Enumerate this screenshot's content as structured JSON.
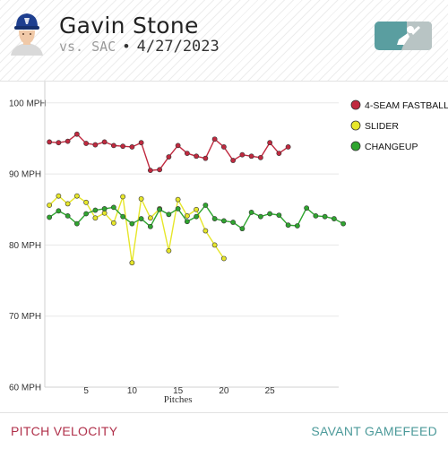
{
  "header": {
    "player_name": "Gavin Stone",
    "opponent": "vs. SAC",
    "separator": "•",
    "date": "4/27/2023",
    "avatar_icon": "player-headshot-icon",
    "logo_icon": "mlb-logo-icon"
  },
  "footer": {
    "left_label": "PITCH VELOCITY",
    "right_label": "SAVANT GAMEFEED"
  },
  "colors": {
    "fastball": "#c0293f",
    "slider": "#e6e62a",
    "changeup": "#2fa52f",
    "footer_left": "#b0304a",
    "footer_right": "#4c9a9a"
  },
  "chart_data": {
    "type": "line",
    "xlabel": "Pitches",
    "ylabel": "",
    "xlim": [
      0.5,
      32.5
    ],
    "ylim": [
      60,
      103
    ],
    "x_ticks": [
      5,
      10,
      15,
      20,
      25
    ],
    "y_ticks": [
      {
        "value": 100,
        "label": "100 MPH"
      },
      {
        "value": 90,
        "label": "90 MPH"
      },
      {
        "value": 80,
        "label": "80 MPH"
      },
      {
        "value": 70,
        "label": "70 MPH"
      },
      {
        "value": 60,
        "label": "60 MPH"
      }
    ],
    "grid": "horizontal",
    "legend_position": "right",
    "series": [
      {
        "name": "4-SEAM FASTBALL",
        "color": "#c0293f",
        "values": [
          94.5,
          94.4,
          94.6,
          95.6,
          94.3,
          94.1,
          94.5,
          94.0,
          93.9,
          93.8,
          94.4,
          90.5,
          90.6,
          92.4,
          94.0,
          92.9,
          92.5,
          92.2,
          94.9,
          93.8,
          91.9,
          92.7,
          92.5,
          92.3,
          94.4,
          92.9,
          93.8
        ]
      },
      {
        "name": "SLIDER",
        "color": "#e6e62a",
        "values": [
          85.6,
          86.9,
          85.8,
          86.9,
          86.0,
          83.8,
          84.5,
          83.1,
          86.8,
          77.5,
          86.5,
          83.8,
          85.1,
          79.2,
          86.4,
          84.1,
          85.0,
          82.0,
          80.0,
          78.1
        ]
      },
      {
        "name": "CHANGEUP",
        "color": "#2fa52f",
        "values": [
          83.9,
          84.8,
          84.1,
          83.0,
          84.4,
          84.9,
          85.1,
          85.3,
          84.0,
          83.0,
          83.7,
          82.6,
          85.0,
          84.3,
          85.1,
          83.3,
          84.0,
          85.6,
          83.7,
          83.4,
          83.2,
          82.3,
          84.6,
          84.0,
          84.4,
          84.2,
          82.8,
          82.7,
          85.2,
          84.1,
          84.0,
          83.7,
          83.0
        ]
      }
    ]
  }
}
